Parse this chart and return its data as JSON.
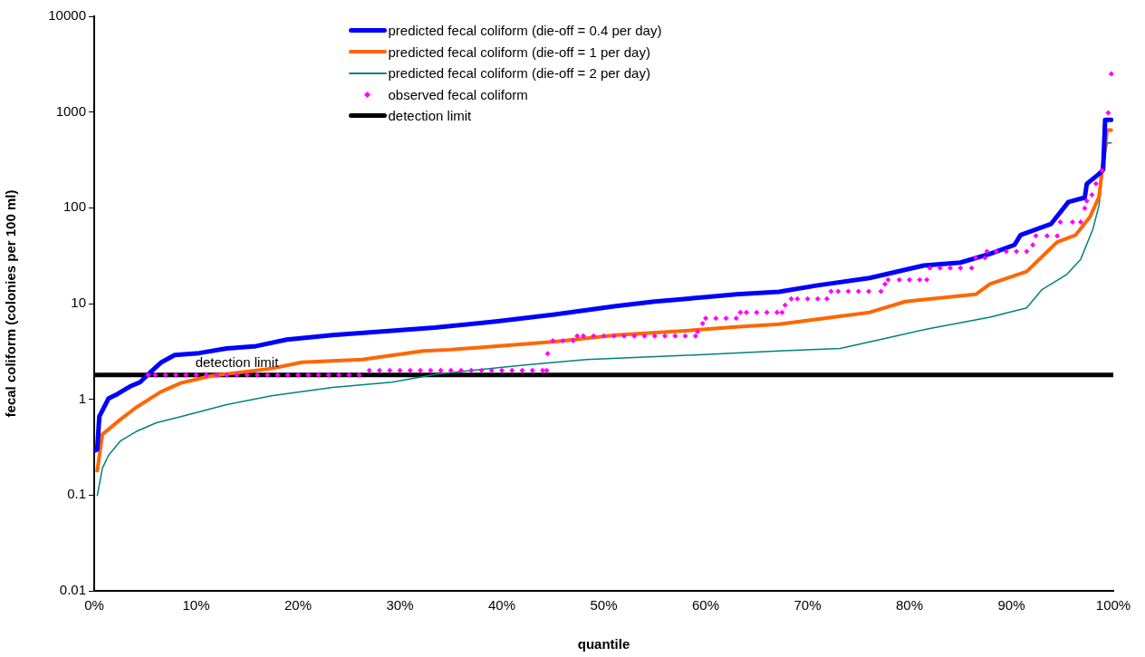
{
  "chart_data": {
    "type": "line",
    "xlabel": "quantile",
    "ylabel": "fecal coliform (colonies per 100 ml)",
    "log": "y",
    "grid": false,
    "legend": "top",
    "marker": "none",
    "line_style": "solid",
    "xlim": [
      0,
      100
    ],
    "xticks": [
      {
        "value": 0,
        "label": "0%"
      },
      {
        "value": 10,
        "label": "10%"
      },
      {
        "value": 20,
        "label": "20%"
      },
      {
        "value": 30,
        "label": "30%"
      },
      {
        "value": 40,
        "label": "40%"
      },
      {
        "value": 50,
        "label": "50%"
      },
      {
        "value": 60,
        "label": "60%"
      },
      {
        "value": 70,
        "label": "70%"
      },
      {
        "value": 80,
        "label": "80%"
      },
      {
        "value": 90,
        "label": "90%"
      },
      {
        "value": 100,
        "label": "100%"
      }
    ],
    "ylim": [
      0.01,
      10000
    ],
    "yticks": [
      0.01,
      0.1,
      1,
      10,
      100,
      1000,
      10000
    ],
    "annotations": [
      {
        "text": "detection limit",
        "x": 14,
        "y": 1.8
      }
    ],
    "series": [
      {
        "name": "predicted fecal coliform (die-off = 0.4 per day)",
        "type": "line",
        "color": "#0000ff",
        "x": [
          0,
          0.3,
          0.5,
          1.4,
          2.3,
          3.5,
          4.5,
          5.6,
          6.6,
          7.9,
          10.3,
          13,
          15.9,
          18.9,
          23.4,
          29.2,
          33.4,
          39.4,
          45.2,
          51.2,
          55,
          60.1,
          63,
          67.2,
          71,
          76.1,
          81.4,
          85,
          87.9,
          90.3,
          90.9,
          93.9,
          95.6,
          97.2,
          97.4,
          98.6,
          99,
          99.2,
          99.8
        ],
        "values": [
          0.29,
          0.3,
          0.66,
          1.02,
          1.14,
          1.36,
          1.51,
          1.96,
          2.44,
          2.9,
          3.04,
          3.4,
          3.6,
          4.2,
          4.7,
          5.2,
          5.6,
          6.5,
          7.7,
          9.4,
          10.5,
          11.7,
          12.5,
          13.3,
          15.5,
          18.5,
          25,
          26.8,
          33,
          41,
          52,
          68,
          115,
          128,
          178,
          226,
          250,
          830,
          830
        ]
      },
      {
        "name": "predicted fecal coliform (die-off = 1 per day)",
        "type": "line",
        "color": "#ff6600",
        "x": [
          0.3,
          0.8,
          2.6,
          4.1,
          6.5,
          8.5,
          11.5,
          17.4,
          20.4,
          26.3,
          32.3,
          34.9,
          38.1,
          45.2,
          51.2,
          58,
          63,
          67.2,
          76.1,
          79.6,
          86.5,
          87.9,
          91.5,
          94.5,
          96.3,
          97.7,
          98.6,
          98.9,
          99.4,
          99.8
        ],
        "values": [
          0.18,
          0.43,
          0.62,
          0.82,
          1.19,
          1.48,
          1.76,
          2.1,
          2.44,
          2.6,
          3.2,
          3.3,
          3.5,
          4,
          4.7,
          5.2,
          5.7,
          6.1,
          8.1,
          10.5,
          12.5,
          16,
          21.6,
          44,
          52,
          80,
          130,
          250,
          650,
          650
        ]
      },
      {
        "name": "predicted fecal coliform (die-off = 2 per day)",
        "type": "line",
        "color": "#008080",
        "x": [
          0.3,
          0.8,
          1.4,
          2.6,
          4.1,
          6.1,
          8.5,
          13,
          17.4,
          23.4,
          29.2,
          33.7,
          42.3,
          48.3,
          57.2,
          67.2,
          73.2,
          77.9,
          82,
          87.9,
          91.5,
          93,
          95.4,
          96.8,
          98,
          98.6,
          99,
          99.4,
          99.8
        ],
        "values": [
          0.099,
          0.19,
          0.26,
          0.37,
          0.46,
          0.57,
          0.66,
          0.88,
          1.09,
          1.33,
          1.51,
          1.84,
          2.29,
          2.6,
          2.85,
          3.2,
          3.4,
          4.4,
          5.5,
          7.2,
          9,
          14,
          20,
          29,
          60,
          106,
          250,
          475,
          475
        ]
      },
      {
        "name": "observed fecal coliform",
        "type": "scatter",
        "color": "#ff00ff",
        "marker": "diamond",
        "x": [
          5.3,
          6,
          7,
          8,
          9,
          10,
          11,
          12,
          13,
          14,
          15,
          16,
          17,
          18,
          19,
          20,
          21,
          22,
          23,
          24,
          25,
          26,
          27,
          28,
          29,
          30,
          31,
          32,
          33,
          34,
          35,
          36,
          37,
          38,
          39,
          40,
          41,
          42,
          43,
          44,
          44.4,
          44.5,
          45,
          46,
          47,
          47.4,
          48,
          49,
          50,
          51,
          52,
          53,
          54,
          55,
          56,
          57,
          58,
          59,
          59.2,
          59.7,
          60,
          61,
          62,
          63,
          63.4,
          64,
          65,
          66,
          67,
          67.5,
          67.8,
          68.4,
          69,
          70,
          71,
          71.9,
          72.3,
          73,
          74,
          75,
          76,
          77.2,
          77.6,
          77.9,
          79,
          80,
          81,
          81.7,
          82,
          83,
          84,
          85,
          86.1,
          86.5,
          87.4,
          87.6,
          88.5,
          89.5,
          90.5,
          91.5,
          92.1,
          92.4,
          93.5,
          94.5,
          94.8,
          96,
          96.8,
          97.2,
          97.4,
          97.9,
          98.3,
          98.9,
          99.5,
          99.8
        ],
        "values": [
          1.8,
          1.8,
          1.8,
          1.8,
          1.8,
          1.8,
          1.8,
          1.8,
          1.8,
          1.8,
          1.8,
          1.8,
          1.8,
          1.8,
          1.8,
          1.8,
          1.8,
          1.8,
          1.8,
          1.8,
          1.8,
          1.8,
          2,
          2,
          2,
          2,
          2,
          2,
          2,
          2,
          2,
          2,
          2,
          2,
          2,
          2,
          2,
          2,
          2,
          2,
          2,
          3,
          4.1,
          4.1,
          4.1,
          4.6,
          4.6,
          4.6,
          4.6,
          4.6,
          4.6,
          4.6,
          4.6,
          4.6,
          4.6,
          4.6,
          4.6,
          4.6,
          5.1,
          6.2,
          7,
          7,
          7,
          7,
          8.1,
          8.1,
          8.1,
          8.1,
          8.1,
          8.1,
          9.6,
          11.2,
          11.2,
          11.2,
          11.2,
          11.2,
          13.4,
          13.4,
          13.4,
          13.4,
          13.4,
          13.4,
          16,
          17.7,
          17.7,
          17.7,
          17.7,
          17.7,
          23.5,
          23.5,
          23.5,
          23.5,
          23.5,
          30,
          30,
          35,
          35,
          35,
          35,
          35,
          41,
          51,
          51,
          51,
          71,
          71,
          71,
          99,
          118,
          137,
          178,
          245,
          980,
          2500
        ]
      },
      {
        "name": "detection limit",
        "type": "line",
        "color": "#000000",
        "x": [
          0,
          100
        ],
        "values": [
          1.8,
          1.8
        ]
      }
    ]
  }
}
